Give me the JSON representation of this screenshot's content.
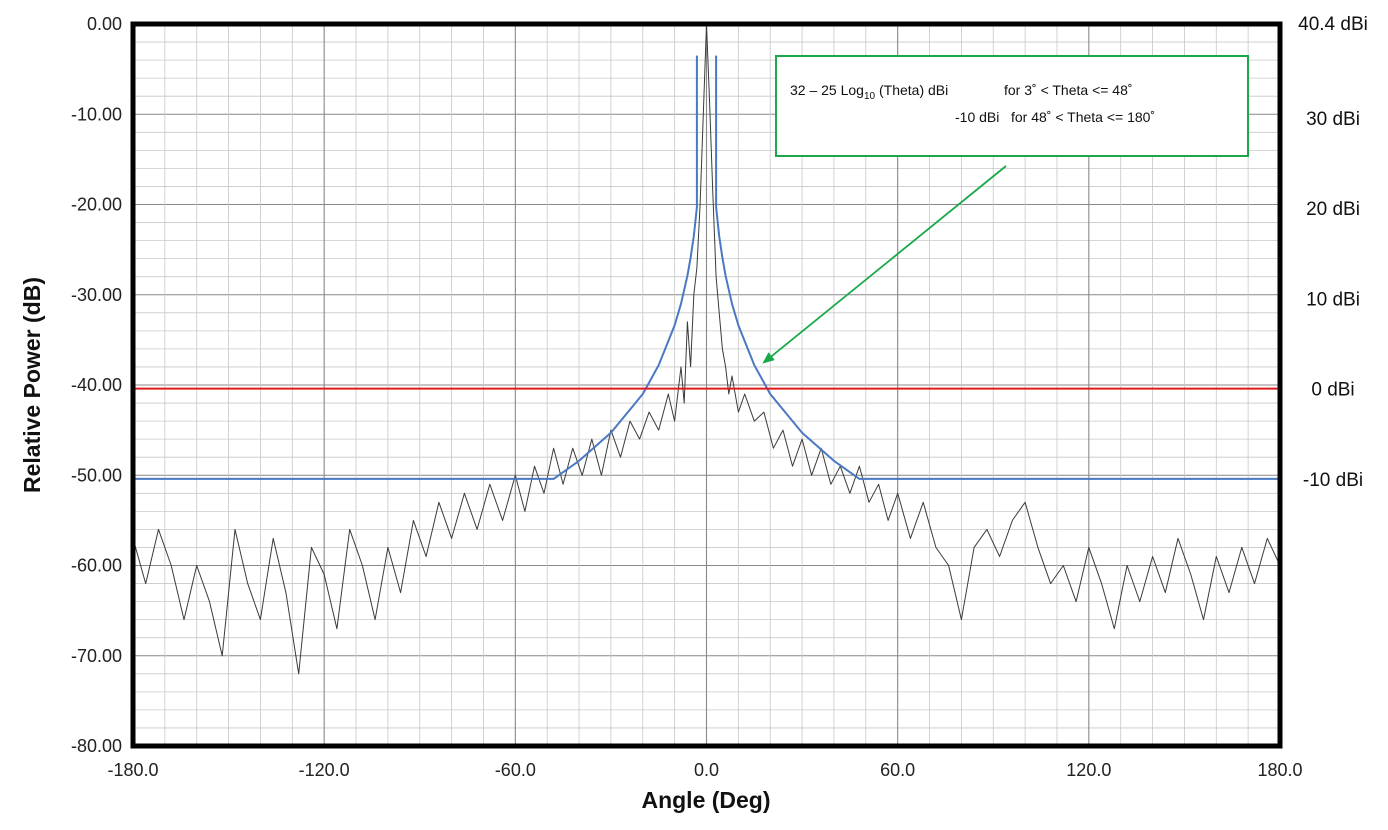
{
  "chart_data": {
    "type": "line",
    "xlabel": "Angle (Deg)",
    "ylabel": "Relative Power (dB)",
    "xlim": [
      -180,
      180
    ],
    "ylim": [
      -80,
      0
    ],
    "x_ticks": [
      -180,
      -120,
      -60,
      0,
      60,
      120,
      180
    ],
    "x_tick_labels": [
      "-180.0",
      "-120.0",
      "-60.0",
      "0.0",
      "60.0",
      "120.0",
      "180.0"
    ],
    "y_ticks": [
      0,
      -10,
      -20,
      -30,
      -40,
      -50,
      -60,
      -70,
      -80
    ],
    "y_tick_labels": [
      "0.00",
      "-10.00",
      "-20.00",
      "-30.00",
      "-40.00",
      "-50.00",
      "-60.00",
      "-70.00",
      "-80.00"
    ],
    "secondary_axis_labels": [
      {
        "label": "40.4 dBi",
        "relative_db": 0
      },
      {
        "label": "30 dBi",
        "relative_db": -10.4
      },
      {
        "label": "20 dBi",
        "relative_db": -20.4
      },
      {
        "label": "10 dBi",
        "relative_db": -30.4
      },
      {
        "label": "0 dBi",
        "relative_db": -40.4
      },
      {
        "label": "-10 dBi",
        "relative_db": -50.4
      }
    ],
    "grid": true,
    "series": [
      {
        "color": "#3b3b3b",
        "points": [
          [
            -180,
            -57
          ],
          [
            -176,
            -62
          ],
          [
            -172,
            -56
          ],
          [
            -168,
            -60
          ],
          [
            -164,
            -66
          ],
          [
            -160,
            -60
          ],
          [
            -156,
            -64
          ],
          [
            -152,
            -70
          ],
          [
            -148,
            -56
          ],
          [
            -144,
            -62
          ],
          [
            -140,
            -66
          ],
          [
            -136,
            -57
          ],
          [
            -132,
            -63
          ],
          [
            -128,
            -72
          ],
          [
            -124,
            -58
          ],
          [
            -120,
            -61
          ],
          [
            -116,
            -67
          ],
          [
            -112,
            -56
          ],
          [
            -108,
            -60
          ],
          [
            -104,
            -66
          ],
          [
            -100,
            -58
          ],
          [
            -96,
            -63
          ],
          [
            -92,
            -55
          ],
          [
            -88,
            -59
          ],
          [
            -84,
            -53
          ],
          [
            -80,
            -57
          ],
          [
            -76,
            -52
          ],
          [
            -72,
            -56
          ],
          [
            -68,
            -51
          ],
          [
            -64,
            -55
          ],
          [
            -60,
            -50
          ],
          [
            -57,
            -54
          ],
          [
            -54,
            -49
          ],
          [
            -51,
            -52
          ],
          [
            -48,
            -47
          ],
          [
            -45,
            -51
          ],
          [
            -42,
            -47
          ],
          [
            -39,
            -50
          ],
          [
            -36,
            -46
          ],
          [
            -33,
            -50
          ],
          [
            -30,
            -45
          ],
          [
            -27,
            -48
          ],
          [
            -24,
            -44
          ],
          [
            -21,
            -46
          ],
          [
            -18,
            -43
          ],
          [
            -15,
            -45
          ],
          [
            -12,
            -41
          ],
          [
            -10,
            -44
          ],
          [
            -8,
            -38
          ],
          [
            -7,
            -42
          ],
          [
            -6,
            -33
          ],
          [
            -5,
            -38
          ],
          [
            -4,
            -30
          ],
          [
            -3,
            -27
          ],
          [
            -2,
            -20
          ],
          [
            -1,
            -10
          ],
          [
            0,
            0
          ],
          [
            1,
            -9
          ],
          [
            2,
            -19
          ],
          [
            3,
            -28
          ],
          [
            4,
            -32
          ],
          [
            5,
            -36
          ],
          [
            6,
            -38
          ],
          [
            7,
            -41
          ],
          [
            8,
            -39
          ],
          [
            10,
            -43
          ],
          [
            12,
            -41
          ],
          [
            15,
            -44
          ],
          [
            18,
            -43
          ],
          [
            21,
            -47
          ],
          [
            24,
            -45
          ],
          [
            27,
            -49
          ],
          [
            30,
            -46
          ],
          [
            33,
            -50
          ],
          [
            36,
            -47
          ],
          [
            39,
            -51
          ],
          [
            42,
            -49
          ],
          [
            45,
            -52
          ],
          [
            48,
            -49
          ],
          [
            51,
            -53
          ],
          [
            54,
            -51
          ],
          [
            57,
            -55
          ],
          [
            60,
            -52
          ],
          [
            64,
            -57
          ],
          [
            68,
            -53
          ],
          [
            72,
            -58
          ],
          [
            76,
            -60
          ],
          [
            80,
            -66
          ],
          [
            84,
            -58
          ],
          [
            88,
            -56
          ],
          [
            92,
            -59
          ],
          [
            96,
            -55
          ],
          [
            100,
            -53
          ],
          [
            104,
            -58
          ],
          [
            108,
            -62
          ],
          [
            112,
            -60
          ],
          [
            116,
            -64
          ],
          [
            120,
            -58
          ],
          [
            124,
            -62
          ],
          [
            128,
            -67
          ],
          [
            132,
            -60
          ],
          [
            136,
            -64
          ],
          [
            140,
            -59
          ],
          [
            144,
            -63
          ],
          [
            148,
            -57
          ],
          [
            152,
            -61
          ],
          [
            156,
            -66
          ],
          [
            160,
            -59
          ],
          [
            164,
            -63
          ],
          [
            168,
            -58
          ],
          [
            172,
            -62
          ],
          [
            176,
            -57
          ],
          [
            180,
            -60
          ]
        ]
      },
      {
        "color": "#4a78c2",
        "points": [
          [
            -180,
            -50.4
          ],
          [
            -48,
            -50.4
          ],
          [
            -40,
            -48.4
          ],
          [
            -30,
            -45.3
          ],
          [
            -20,
            -41.0
          ],
          [
            -15,
            -37.8
          ],
          [
            -10,
            -33.4
          ],
          [
            -8,
            -31.0
          ],
          [
            -6,
            -27.9
          ],
          [
            -5,
            -25.9
          ],
          [
            -4,
            -23.5
          ],
          [
            -3,
            -20.3
          ],
          [
            -3,
            -3.5
          ]
        ]
      },
      {
        "color": "#4a78c2",
        "points": [
          [
            3,
            -3.5
          ],
          [
            3,
            -20.3
          ],
          [
            4,
            -23.5
          ],
          [
            5,
            -25.9
          ],
          [
            6,
            -27.9
          ],
          [
            8,
            -31.0
          ],
          [
            10,
            -33.4
          ],
          [
            15,
            -37.8
          ],
          [
            20,
            -41.0
          ],
          [
            30,
            -45.3
          ],
          [
            40,
            -48.4
          ],
          [
            48,
            -50.4
          ],
          [
            180,
            -50.4
          ]
        ]
      },
      {
        "color": "#e0191c",
        "points": [
          [
            -180,
            -40.4
          ],
          [
            180,
            -40.4
          ]
        ]
      }
    ],
    "annotations": [
      {
        "lines": [
          {
            "parts": [
              "32 – 25 Log",
              "10",
              " (Theta) dBi",
              "for 3˚ <  Theta <= 48˚"
            ]
          },
          {
            "parts": [
              "-10 dBi",
              "for 48˚ < Theta <= 180˚"
            ]
          }
        ],
        "box_color": "#1aa84a",
        "arrow_target": [
          18,
          -37.5
        ]
      }
    ]
  }
}
